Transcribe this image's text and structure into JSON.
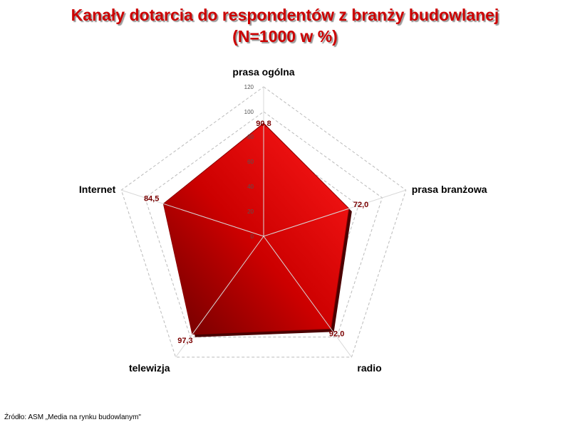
{
  "title_line1": "Kanały dotarcia do respondentów z branży budowlanej",
  "title_line2": "(N=1000 w %)",
  "source": "Źródło: ASM „Media na rynku budowlanym\"",
  "chart_data": {
    "type": "radar",
    "categories": [
      "prasa ogólna",
      "prasa branżowa",
      "radio",
      "telewizja",
      "Internet"
    ],
    "values": [
      90.8,
      72.0,
      92.0,
      97.3,
      84.5
    ],
    "value_labels": [
      "90,8",
      "72,0",
      "92,0",
      "97,3",
      "84,5"
    ],
    "rlim": [
      0,
      120
    ],
    "ticks": [
      0,
      20,
      40,
      60,
      80,
      100,
      120
    ],
    "fill_color": "#cc0000",
    "fill_dark_color": "#7a0000",
    "grid_color": "#bbbbbb",
    "grid": true
  }
}
